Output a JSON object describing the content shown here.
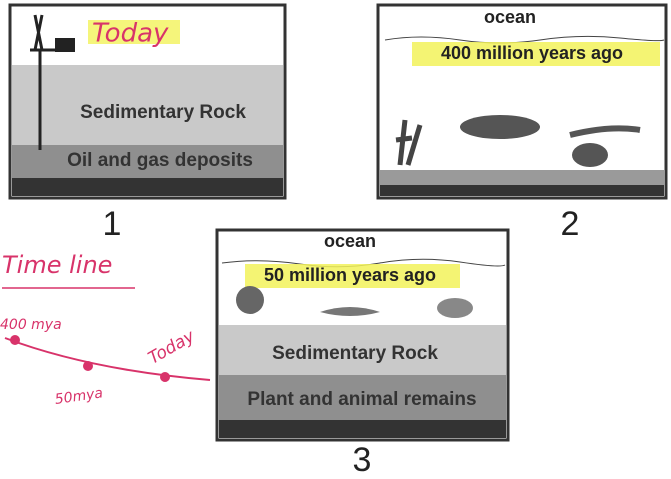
{
  "panels": [
    {
      "number": 1,
      "handwritten_label": "Today",
      "layers": [
        "Sedimentary Rock",
        "Oil and gas deposits"
      ]
    },
    {
      "number": 2,
      "water_label": "ocean",
      "age_label": "400 million years ago"
    },
    {
      "number": 3,
      "water_label": "ocean",
      "age_label": "50 million years ago",
      "layers": [
        "Sedimentary Rock",
        "Plant and animal remains"
      ]
    }
  ],
  "timeline": {
    "title": "Time line",
    "points": [
      "400 mya",
      "50mya",
      "Today"
    ]
  }
}
